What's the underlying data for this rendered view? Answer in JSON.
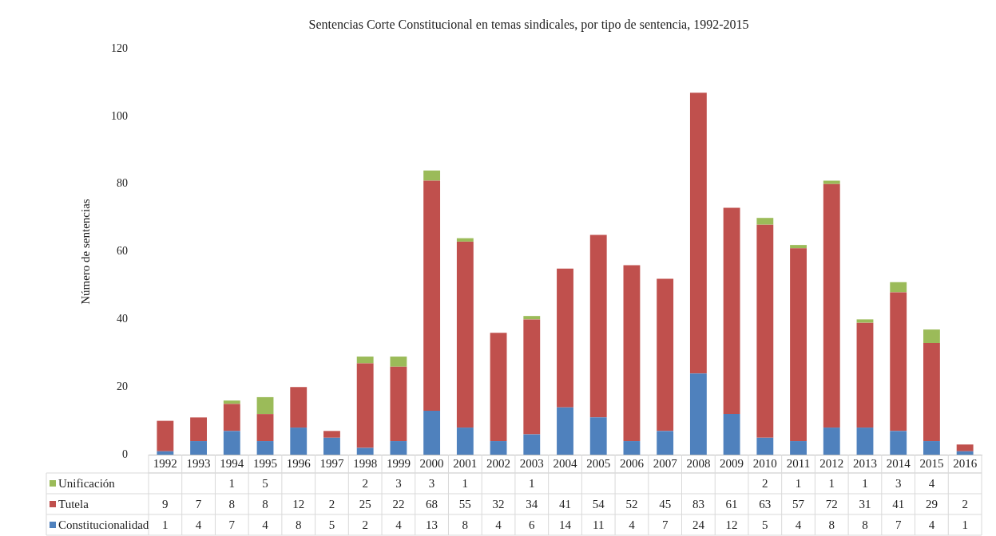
{
  "chart_data": {
    "type": "bar",
    "stacked": true,
    "title": "Sentencias Corte Constitucional en temas sindicales, por tipo de sentencia, 1992-2015",
    "ylabel": "Número de sentencias",
    "categories": [
      "1992",
      "1993",
      "1994",
      "1995",
      "1996",
      "1997",
      "1998",
      "1999",
      "2000",
      "2001",
      "2002",
      "2003",
      "2004",
      "2005",
      "2006",
      "2007",
      "2008",
      "2009",
      "2010",
      "2011",
      "2012",
      "2013",
      "2014",
      "2015",
      "2016"
    ],
    "series": [
      {
        "name": "Constitucionalidad",
        "color": "#4f81bd",
        "values": [
          1,
          4,
          7,
          4,
          8,
          5,
          2,
          4,
          13,
          8,
          4,
          6,
          14,
          11,
          4,
          7,
          24,
          12,
          5,
          4,
          8,
          8,
          7,
          4,
          1
        ]
      },
      {
        "name": "Tutela",
        "color": "#c0504d",
        "values": [
          9,
          7,
          8,
          8,
          12,
          2,
          25,
          22,
          68,
          55,
          32,
          34,
          41,
          54,
          52,
          45,
          83,
          61,
          63,
          57,
          72,
          31,
          41,
          29,
          2
        ]
      },
      {
        "name": "Unificación",
        "color": "#9bbb59",
        "values": [
          null,
          null,
          1,
          5,
          null,
          null,
          2,
          3,
          3,
          1,
          null,
          1,
          null,
          null,
          null,
          null,
          null,
          null,
          2,
          1,
          1,
          1,
          3,
          4,
          null
        ]
      }
    ],
    "ylim": [
      0,
      120
    ],
    "yticks": [
      0,
      20,
      40,
      60,
      80,
      100,
      120
    ],
    "grid": false,
    "legend": "bottom",
    "data_labels": true
  }
}
